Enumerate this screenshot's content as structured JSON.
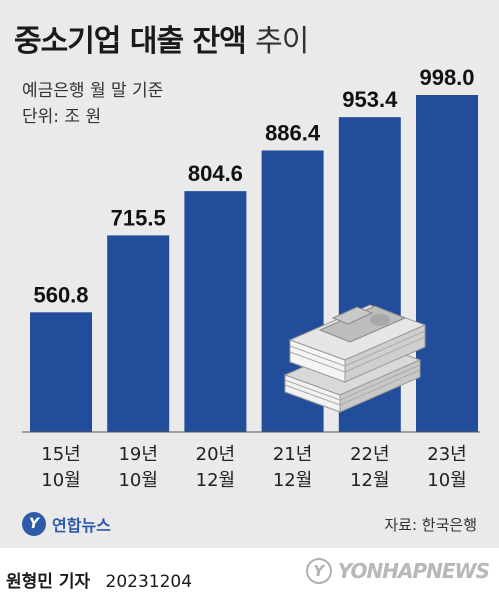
{
  "header": {
    "title_main": "중소기업 대출 잔액",
    "title_tail": "추이",
    "subtitle": "예금은행 월 말 기준",
    "unit": "단위: 조 원"
  },
  "chart_data": {
    "type": "bar",
    "categories": [
      [
        "15년",
        "10월"
      ],
      [
        "19년",
        "10월"
      ],
      [
        "20년",
        "12월"
      ],
      [
        "21년",
        "12월"
      ],
      [
        "22년",
        "12월"
      ],
      [
        "23년",
        "10월"
      ]
    ],
    "values": [
      560.8,
      715.5,
      804.6,
      886.4,
      953.4,
      998.0
    ],
    "value_labels": [
      "560.8",
      "715.5",
      "804.6",
      "886.4",
      "953.4",
      "998.0"
    ],
    "bar_color": "#224d9a",
    "grid": false,
    "legend": "none"
  },
  "illustration": {
    "icon": "money-stack-icon"
  },
  "footer": {
    "brand": "연합뉴스",
    "source": "자료: 한국은행",
    "author": "원형민 기자",
    "date": "20231204",
    "watermark": "YONHAPNEWS"
  },
  "colors": {
    "background": "#eaeaea",
    "bar": "#224d9a",
    "brand": "#2e5aa8"
  }
}
